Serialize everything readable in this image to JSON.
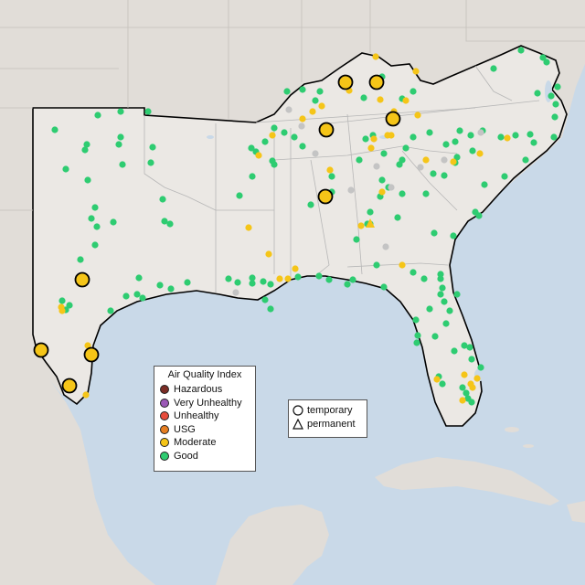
{
  "colors": {
    "ocean": "#c9d9e8",
    "land": "#e9e5e0",
    "land_out": "#e1ddd8",
    "state_line": "#b7b7b7",
    "boundary": "#000000",
    "good": "#2ecc71",
    "moderate": "#f5c518",
    "usg": "#e67e22",
    "unhealthy": "#e74c3c",
    "very_unhealthy": "#9b59b6",
    "hazardous": "#7b2d26",
    "no_data": "#c4c4c4"
  },
  "legend": {
    "title": "Air Quality Index",
    "items": [
      {
        "label": "Hazardous",
        "color": "#7b2d26"
      },
      {
        "label": "Very Unhealthy",
        "color": "#9b59b6"
      },
      {
        "label": "Unhealthy",
        "color": "#e74c3c"
      },
      {
        "label": "USG",
        "color": "#e67e22"
      },
      {
        "label": "Moderate",
        "color": "#f5c518"
      },
      {
        "label": "Good",
        "color": "#2ecc71"
      }
    ]
  },
  "monitor_types": {
    "temporary": "temporary",
    "permanent": "permanent"
  }
}
